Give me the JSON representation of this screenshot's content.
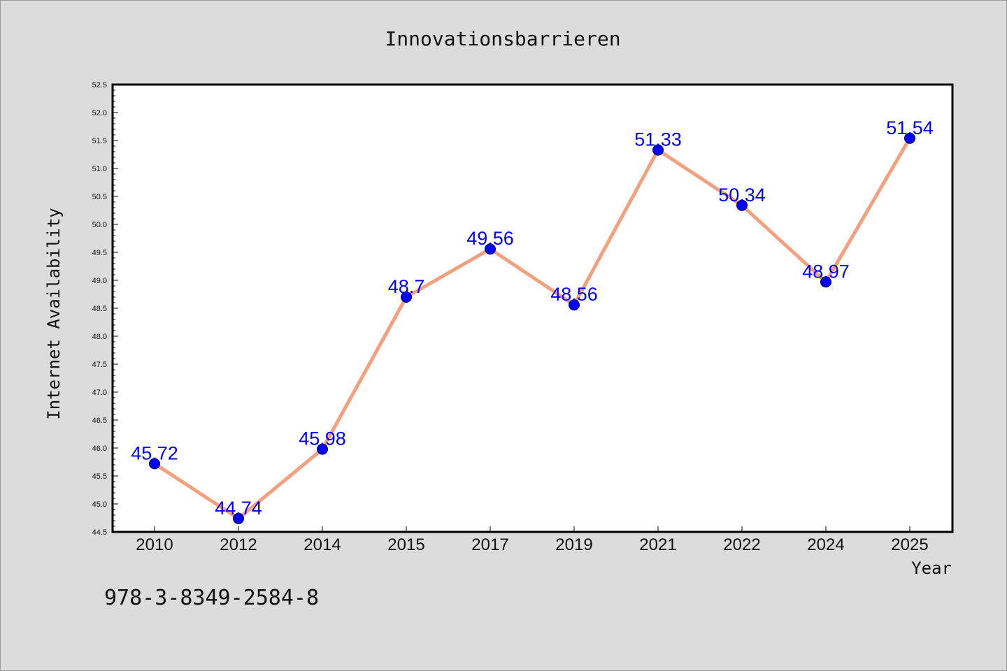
{
  "chart_data": {
    "type": "line",
    "title": "Innovationsbarrieren",
    "xlabel": "Year",
    "ylabel": "Internet Availability",
    "categories": [
      "2010",
      "2012",
      "2014",
      "2015",
      "2017",
      "2019",
      "2021",
      "2022",
      "2024",
      "2025"
    ],
    "series": [
      {
        "values": [
          45.72,
          44.74,
          45.98,
          48.7,
          49.56,
          48.56,
          51.33,
          50.34,
          48.97,
          51.54
        ],
        "data_labels": [
          "45.72",
          "44.74",
          "45.98",
          "48.7",
          "49.56",
          "48.56",
          "51.33",
          "50.34",
          "48.97",
          "51.54"
        ]
      }
    ],
    "yticks": [
      "44.5",
      "45.0",
      "45.5",
      "46.0",
      "46.5",
      "47.0",
      "47.5",
      "48.0",
      "48.5",
      "49.0",
      "49.5",
      "50.0",
      "50.5",
      "51.0",
      "51.5",
      "52.0",
      "52.5"
    ],
    "ylim": [
      44.5,
      52.5
    ],
    "grid": false,
    "legend": "none",
    "colors": {
      "line": "#f4a07e",
      "marker": "#0000ff",
      "label": "#0000ff",
      "plot_bg": "#ffffff",
      "page_bg": "#dcdcdc"
    }
  },
  "footer": {
    "isbn": "978-3-8349-2584-8"
  }
}
